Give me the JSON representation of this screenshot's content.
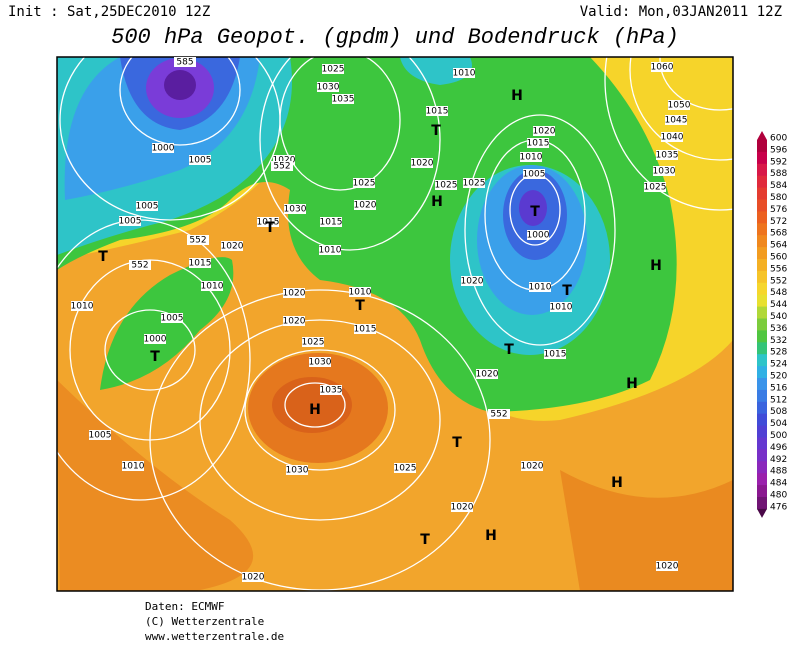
{
  "header": {
    "init": "Init : Sat,25DEC2010 12Z",
    "valid": "Valid: Mon,03JAN2011 12Z",
    "title": "500 hPa Geopot. (gpdm) und Bodendruck (hPa)"
  },
  "colorbar": {
    "labels": [
      600,
      596,
      592,
      588,
      584,
      580,
      576,
      572,
      568,
      564,
      560,
      556,
      552,
      548,
      544,
      540,
      536,
      532,
      528,
      524,
      520,
      516,
      512,
      508,
      504,
      500,
      496,
      492,
      488,
      484,
      480,
      476
    ]
  },
  "map": {
    "labels": [
      "585",
      "1000",
      "1005",
      "1005",
      "1005",
      "T",
      "552",
      "552",
      "1015",
      "1010",
      "1020",
      "1010",
      "1005",
      "1000",
      "T",
      "1005",
      "1010",
      "1025",
      "1030",
      "1035",
      "1020",
      "552",
      "1015",
      "T",
      "1030",
      "1025",
      "1020",
      "1015",
      "1010",
      "1020",
      "1010",
      "T",
      "1015",
      "1020",
      "1025",
      "1030",
      "1035",
      "H",
      "1030",
      "1025",
      "T",
      "1020",
      "T",
      "H",
      "1020",
      "1010",
      "H",
      "1015",
      "T",
      "1020",
      "1015",
      "1010",
      "1005",
      "T",
      "1000",
      "1020",
      "1025",
      "1025",
      "H",
      "1020",
      "1010",
      "T",
      "1010",
      "T",
      "1015",
      "1020",
      "552",
      "H",
      "1020",
      "H",
      "1020",
      "H",
      "1060",
      "1050",
      "1045",
      "1040",
      "1035",
      "1030",
      "1025"
    ]
  },
  "footer": {
    "lines": [
      "Daten: ECMWF",
      "(C) Wetterzentrale",
      "www.wetterzentrale.de"
    ]
  }
}
